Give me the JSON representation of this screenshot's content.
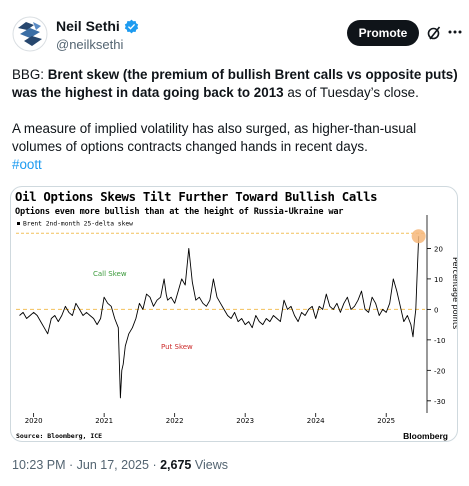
{
  "author": {
    "name": "Neil Sethi",
    "handle": "@neilksethi",
    "verified": true
  },
  "actions": {
    "promote_label": "Promote",
    "grok_icon": "grok-slash-icon",
    "more_icon": "more-dots-icon"
  },
  "tweet": {
    "p1_pre": "BBG: ",
    "p1_bold": "Brent skew (the premium of bullish Brent calls vs opposite puts) was the highest in data going back to 2013",
    "p1_post": " as of Tuesday’s close.",
    "p2": "A measure of implied volatility has also surged, as higher-than-usual volumes of options contracts changed hands in recent days.",
    "hashtag": "#oott"
  },
  "chart_data": {
    "type": "line",
    "title": "Oil Options Skews Tilt Further Toward Bullish Calls",
    "subtitle": "Options even more bullish than at the height of Russia-Ukraine war",
    "legend": "Brent 2nd-month 25-delta skew",
    "ylabel": "Percentage points",
    "yticks": [
      20,
      10,
      0,
      -10,
      -20,
      -30
    ],
    "ylim": [
      -34,
      29
    ],
    "xlim": [
      2019.75,
      2025.55
    ],
    "xticks": [
      "2020",
      "2021",
      "2022",
      "2023",
      "2024",
      "2025"
    ],
    "annotations": {
      "call": "Call Skew",
      "put": "Put Skew"
    },
    "reference_lines": [
      25,
      0
    ],
    "source": "Source: Bloomberg, ICE",
    "brand": "Bloomberg",
    "colors": {
      "line": "#000000",
      "reference": "#f2c05a",
      "highlight": "#f6b77a",
      "call": "#3a9a3a",
      "put": "#cc2b2b",
      "ticks": "#000000"
    },
    "series": [
      {
        "x": [
          2019.8,
          2019.85,
          2019.9,
          2019.95,
          2020.0,
          2020.05,
          2020.1,
          2020.15,
          2020.2,
          2020.25,
          2020.3,
          2020.35,
          2020.4,
          2020.45,
          2020.5,
          2020.55,
          2020.6,
          2020.65,
          2020.7,
          2020.75,
          2020.8,
          2020.85,
          2020.9,
          2020.95,
          2021.0,
          2021.05,
          2021.1,
          2021.15,
          2021.2,
          2021.23,
          2021.25,
          2021.27,
          2021.3,
          2021.35,
          2021.4,
          2021.45,
          2021.5,
          2021.55,
          2021.6,
          2021.65,
          2021.7,
          2021.75,
          2021.8,
          2021.85,
          2021.88,
          2021.9,
          2021.95,
          2022.0,
          2022.05,
          2022.1,
          2022.15,
          2022.2,
          2022.25,
          2022.3,
          2022.35,
          2022.4,
          2022.45,
          2022.5,
          2022.55,
          2022.6,
          2022.65,
          2022.7,
          2022.75,
          2022.8,
          2022.85,
          2022.9,
          2022.95,
          2023.0,
          2023.05,
          2023.1,
          2023.15,
          2023.2,
          2023.25,
          2023.3,
          2023.35,
          2023.4,
          2023.45,
          2023.5,
          2023.55,
          2023.6,
          2023.65,
          2023.7,
          2023.75,
          2023.8,
          2023.85,
          2023.9,
          2023.95,
          2024.0,
          2024.05,
          2024.1,
          2024.15,
          2024.2,
          2024.25,
          2024.3,
          2024.35,
          2024.4,
          2024.45,
          2024.5,
          2024.55,
          2024.6,
          2024.65,
          2024.7,
          2024.75,
          2024.8,
          2024.85,
          2024.9,
          2024.95,
          2025.0,
          2025.05,
          2025.1,
          2025.15,
          2025.2,
          2025.25,
          2025.3,
          2025.35,
          2025.38,
          2025.4,
          2025.42,
          2025.44,
          2025.46
        ],
        "y": [
          -2,
          -1,
          -3,
          -2,
          -1,
          -2,
          -4,
          -6,
          -8,
          -3,
          -2,
          -4,
          -2,
          1,
          -1,
          -2,
          2,
          0,
          -2,
          -1,
          -2,
          -3,
          -5,
          -3,
          4,
          2,
          1,
          -3,
          -6,
          -29,
          -20,
          -18,
          -12,
          -8,
          -6,
          -3,
          2,
          0,
          5,
          4,
          1,
          3,
          4,
          10,
          5,
          3,
          4,
          2,
          6,
          10,
          8,
          20,
          9,
          3,
          4,
          2,
          1,
          3,
          10,
          4,
          2,
          0,
          -2,
          -3,
          -1,
          -4,
          -3,
          -5,
          -4,
          -6,
          -2,
          -4,
          -5,
          -3,
          -4,
          -2,
          -3,
          -4,
          3,
          0,
          1,
          -2,
          -4,
          -1,
          -2,
          0,
          1,
          -3,
          1,
          0,
          5,
          1,
          0,
          2,
          -1,
          2,
          4,
          0,
          1,
          3,
          6,
          0,
          -1,
          4,
          2,
          -2,
          0,
          -1,
          2,
          10,
          6,
          1,
          -4,
          -2,
          -5,
          -9,
          -4,
          0,
          12,
          24
        ]
      }
    ]
  },
  "meta": {
    "time": "10:23 PM",
    "date": "Jun 17, 2025",
    "views": "2,675",
    "views_label": "Views",
    "sep": "·"
  }
}
